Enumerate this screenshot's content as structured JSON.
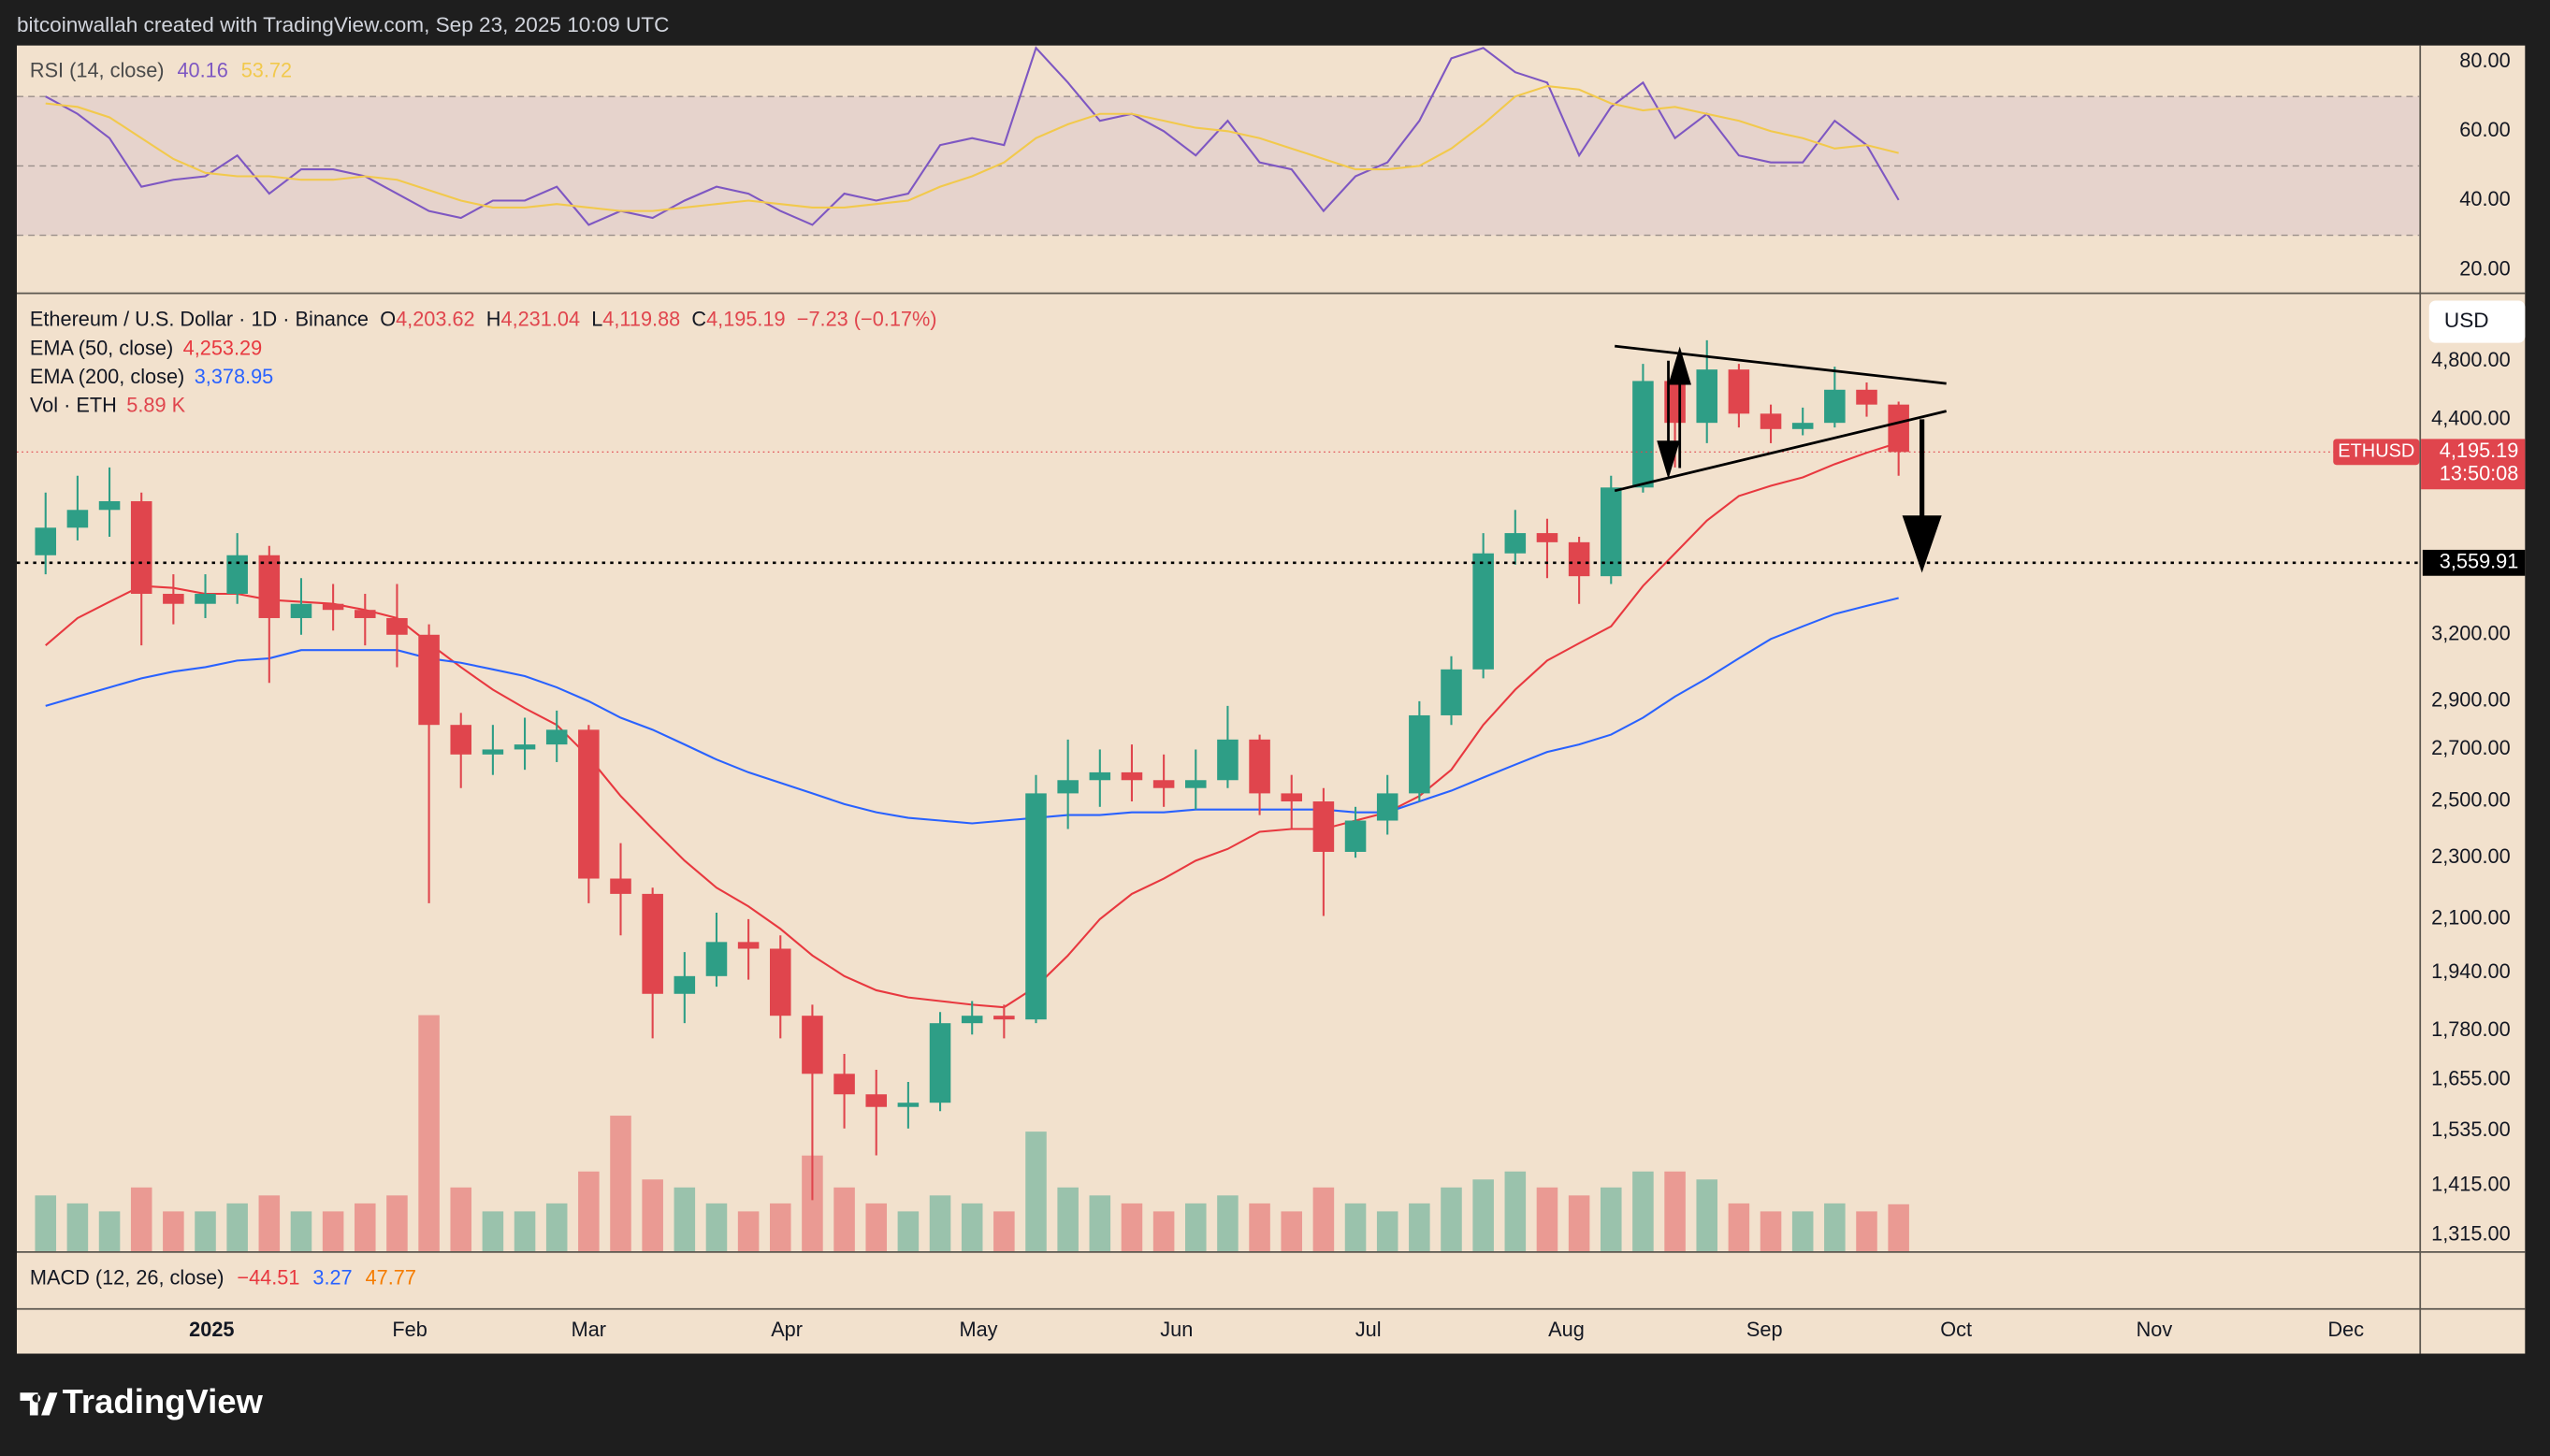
{
  "header": {
    "text": "bitcoinwallah created with TradingView.com, Sep 23, 2025 10:09 UTC"
  },
  "footer": {
    "brand": "TradingView"
  },
  "chart_data": [
    {
      "type": "rsi",
      "title": "RSI (14, close)",
      "x": [
        -26,
        -21,
        -16,
        -11,
        -6,
        -1,
        4,
        9,
        14,
        19,
        24,
        29,
        34,
        39,
        44,
        49,
        54,
        59,
        64,
        69,
        74,
        79,
        84,
        89,
        94,
        99,
        104,
        109,
        114,
        119,
        124,
        129,
        134,
        139,
        144,
        149,
        154,
        159,
        164,
        169,
        174,
        179,
        184,
        189,
        194,
        199,
        204,
        209,
        214,
        219,
        224,
        229,
        234,
        239,
        244,
        249,
        254,
        259,
        264
      ],
      "xlim": [
        -30.5,
        345.5
      ],
      "ylim": [
        13.5,
        84.7
      ],
      "yticks": [
        {
          "value": 80,
          "label": "80.00"
        },
        {
          "value": 60,
          "label": "60.00"
        },
        {
          "value": 40,
          "label": "40.00"
        },
        {
          "value": 20,
          "label": "20.00"
        }
      ],
      "band": [
        30,
        70
      ],
      "midline": 50,
      "band_color": "#7e57c2",
      "series": [
        {
          "color": "#7e57c2",
          "values": [
            70,
            65,
            58,
            44,
            46,
            47,
            53,
            42,
            49,
            49,
            47,
            42,
            37,
            35,
            40,
            40,
            44,
            33,
            37,
            35,
            40,
            44,
            42,
            37,
            33,
            42,
            40,
            42,
            56,
            58,
            56,
            84,
            74,
            63,
            65,
            60,
            53,
            63,
            51,
            49,
            37,
            47,
            51,
            63,
            81,
            84,
            77,
            74,
            53,
            67,
            74,
            58,
            65,
            53,
            51,
            51,
            63,
            56,
            40.16
          ]
        },
        {
          "color": "#f2c94c",
          "values": [
            68,
            67,
            64,
            58,
            52,
            48,
            47,
            47,
            46,
            46,
            47,
            46,
            43,
            40,
            38,
            38,
            39,
            38,
            37,
            37,
            38,
            39,
            40,
            39,
            38,
            38,
            39,
            40,
            44,
            47,
            51,
            58,
            62,
            65,
            65,
            63,
            61,
            60,
            58,
            55,
            52,
            49,
            49,
            50,
            55,
            62,
            70,
            73,
            72,
            68,
            66,
            67,
            65,
            63,
            60,
            58,
            55,
            56,
            53.72
          ]
        }
      ]
    },
    {
      "type": "candlestick",
      "title": "Ethereum / U.S. Dollar · 1D · Binance",
      "ohlc_legend": [
        {
          "key": "O",
          "value": "4,203.62"
        },
        {
          "key": "H",
          "value": "4,231.04"
        },
        {
          "key": "L",
          "value": "4,119.88"
        },
        {
          "key": "C",
          "value": "4,195.19"
        }
      ],
      "change": "−7.23 (−0.17%)",
      "x": [
        -26,
        -21,
        -16,
        -11,
        -6,
        -1,
        4,
        9,
        14,
        19,
        24,
        29,
        34,
        39,
        44,
        49,
        54,
        59,
        64,
        69,
        74,
        79,
        84,
        89,
        94,
        99,
        104,
        109,
        114,
        119,
        124,
        129,
        134,
        139,
        144,
        149,
        154,
        159,
        164,
        169,
        174,
        179,
        184,
        189,
        194,
        199,
        204,
        209,
        214,
        219,
        224,
        229,
        234,
        239,
        244,
        249,
        254,
        259,
        264
      ],
      "open": [
        3600,
        3750,
        3850,
        3900,
        3400,
        3350,
        3400,
        3600,
        3280,
        3350,
        3320,
        3280,
        3200,
        2800,
        2680,
        2700,
        2720,
        2780,
        2230,
        2180,
        1880,
        1930,
        2030,
        2010,
        1820,
        1670,
        1620,
        1590,
        1600,
        1800,
        1820,
        1810,
        2530,
        2580,
        2610,
        2580,
        2550,
        2580,
        2740,
        2530,
        2500,
        2320,
        2430,
        2530,
        2840,
        3040,
        3610,
        3720,
        3670,
        3490,
        3980,
        4660,
        4380,
        4740,
        4440,
        4340,
        4380,
        4600,
        4500
      ],
      "high": [
        3950,
        4050,
        4100,
        3950,
        3500,
        3500,
        3720,
        3650,
        3480,
        3450,
        3400,
        3450,
        3250,
        2850,
        2800,
        2830,
        2860,
        2800,
        2350,
        2200,
        2000,
        2120,
        2100,
        2050,
        1850,
        1720,
        1680,
        1650,
        1830,
        1860,
        1850,
        2600,
        2740,
        2700,
        2720,
        2680,
        2700,
        2880,
        2760,
        2600,
        2550,
        2480,
        2600,
        2900,
        3100,
        3720,
        3850,
        3800,
        3700,
        4050,
        4780,
        4750,
        4950,
        4780,
        4500,
        4480,
        4760,
        4650,
        4520
      ],
      "low": [
        3500,
        3680,
        3700,
        3150,
        3250,
        3280,
        3350,
        2980,
        3200,
        3220,
        3150,
        3050,
        2150,
        2550,
        2600,
        2620,
        2650,
        2150,
        2050,
        1760,
        1800,
        1900,
        1920,
        1760,
        1385,
        1540,
        1480,
        1540,
        1580,
        1770,
        1760,
        1800,
        2400,
        2480,
        2500,
        2480,
        2470,
        2550,
        2450,
        2400,
        2110,
        2300,
        2380,
        2500,
        2800,
        3000,
        3550,
        3480,
        3350,
        3450,
        3950,
        4100,
        4250,
        4350,
        4250,
        4300,
        4350,
        4420,
        4050
      ],
      "close": [
        3750,
        3850,
        3900,
        3400,
        3350,
        3400,
        3600,
        3280,
        3350,
        3320,
        3280,
        3200,
        2800,
        2680,
        2700,
        2720,
        2780,
        2230,
        2180,
        1880,
        1930,
        2030,
        2010,
        1820,
        1670,
        1620,
        1590,
        1600,
        1800,
        1820,
        1810,
        2530,
        2580,
        2610,
        2580,
        2550,
        2580,
        2740,
        2530,
        2500,
        2320,
        2430,
        2530,
        2840,
        3040,
        3610,
        3720,
        3670,
        3490,
        3980,
        4660,
        4380,
        4740,
        4440,
        4340,
        4380,
        4600,
        4500,
        4195
      ],
      "up_color": "#2e9e86",
      "down_color": "#e0454d",
      "log_scale": true,
      "grid": false,
      "xlim": [
        -30.5,
        345.5
      ],
      "xticks": [
        {
          "value": 0,
          "label": "2025"
        },
        {
          "value": 31,
          "label": "Feb"
        },
        {
          "value": 59,
          "label": "Mar"
        },
        {
          "value": 90,
          "label": "Apr"
        },
        {
          "value": 120,
          "label": "May"
        },
        {
          "value": 151,
          "label": "Jun"
        },
        {
          "value": 181,
          "label": "Jul"
        },
        {
          "value": 212,
          "label": "Aug"
        },
        {
          "value": 243,
          "label": "Sep"
        },
        {
          "value": 273,
          "label": "Oct"
        },
        {
          "value": 304,
          "label": "Nov"
        },
        {
          "value": 334,
          "label": "Dec"
        }
      ],
      "ylim": [
        1284,
        5300
      ],
      "yticks": [
        {
          "value": 4800,
          "label": "4,800.00"
        },
        {
          "value": 4400,
          "label": "4,400.00"
        },
        {
          "value": 3200,
          "label": "3,200.00"
        },
        {
          "value": 2900,
          "label": "2,900.00"
        },
        {
          "value": 2700,
          "label": "2,700.00"
        },
        {
          "value": 2500,
          "label": "2,500.00"
        },
        {
          "value": 2300,
          "label": "2,300.00"
        },
        {
          "value": 2100,
          "label": "2,100.00"
        },
        {
          "value": 1940,
          "label": "1,940.00"
        },
        {
          "value": 1780,
          "label": "1,780.00"
        },
        {
          "value": 1655,
          "label": "1,655.00"
        },
        {
          "value": 1535,
          "label": "1,535.00"
        },
        {
          "value": 1415,
          "label": "1,415.00"
        },
        {
          "value": 1315,
          "label": "1,315.00"
        }
      ],
      "series": [
        {
          "name": "EMA (50, close)",
          "color": "#e8383f",
          "value_label": "4,253.29",
          "values": [
            3150,
            3280,
            3360,
            3440,
            3430,
            3400,
            3400,
            3370,
            3360,
            3350,
            3320,
            3280,
            3160,
            3050,
            2950,
            2870,
            2800,
            2670,
            2520,
            2400,
            2290,
            2200,
            2140,
            2070,
            1990,
            1930,
            1890,
            1870,
            1860,
            1850,
            1843,
            1900,
            1990,
            2100,
            2180,
            2230,
            2290,
            2330,
            2390,
            2400,
            2400,
            2430,
            2460,
            2520,
            2620,
            2800,
            2950,
            3080,
            3160,
            3240,
            3440,
            3610,
            3790,
            3930,
            3990,
            4040,
            4120,
            4190,
            4253.29
          ]
        },
        {
          "name": "EMA (200, close)",
          "color": "#2962ff",
          "value_label": "3,378.95",
          "values": [
            2880,
            2920,
            2960,
            3000,
            3030,
            3050,
            3080,
            3090,
            3128,
            3128,
            3128,
            3128,
            3090,
            3070,
            3040,
            3010,
            2960,
            2900,
            2830,
            2780,
            2720,
            2660,
            2610,
            2570,
            2530,
            2490,
            2460,
            2440,
            2430,
            2420,
            2430,
            2440,
            2450,
            2450,
            2460,
            2460,
            2470,
            2470,
            2470,
            2470,
            2470,
            2460,
            2460,
            2500,
            2540,
            2590,
            2640,
            2690,
            2720,
            2760,
            2830,
            2920,
            3000,
            3090,
            3180,
            3240,
            3300,
            3340,
            3378.95
          ]
        }
      ],
      "volume": {
        "name": "Vol · ETH",
        "value_label": "5.89 K",
        "ylim": [
          0,
          120
        ],
        "values": [
          7,
          6,
          5,
          8,
          5,
          5,
          6,
          7,
          5,
          5,
          6,
          7,
          29.6,
          8,
          5,
          5,
          6,
          10,
          17,
          9,
          8,
          6,
          5,
          6,
          12,
          8,
          6,
          5,
          7,
          6,
          5,
          15,
          8,
          7,
          6,
          5,
          6,
          7,
          6,
          5,
          8,
          6,
          5,
          6,
          8,
          9,
          10,
          8,
          7,
          8,
          10,
          10,
          9,
          6,
          5,
          5,
          6,
          5,
          5.89
        ]
      },
      "hline": {
        "value": 3559.91,
        "label": "3,559.91"
      },
      "last_price": {
        "value": 4195.19,
        "label": "4,195.19"
      },
      "symbol": "ETHUSD",
      "countdown": "13:50:08",
      "currency": "USD"
    },
    {
      "type": "macd",
      "title": "MACD (12, 26, close)",
      "legend_values": [
        {
          "text": "−44.51",
          "color": "#e8383f"
        },
        {
          "text": "3.27",
          "color": "#2962ff"
        },
        {
          "text": "47.77",
          "color": "#f57c00"
        }
      ]
    }
  ]
}
